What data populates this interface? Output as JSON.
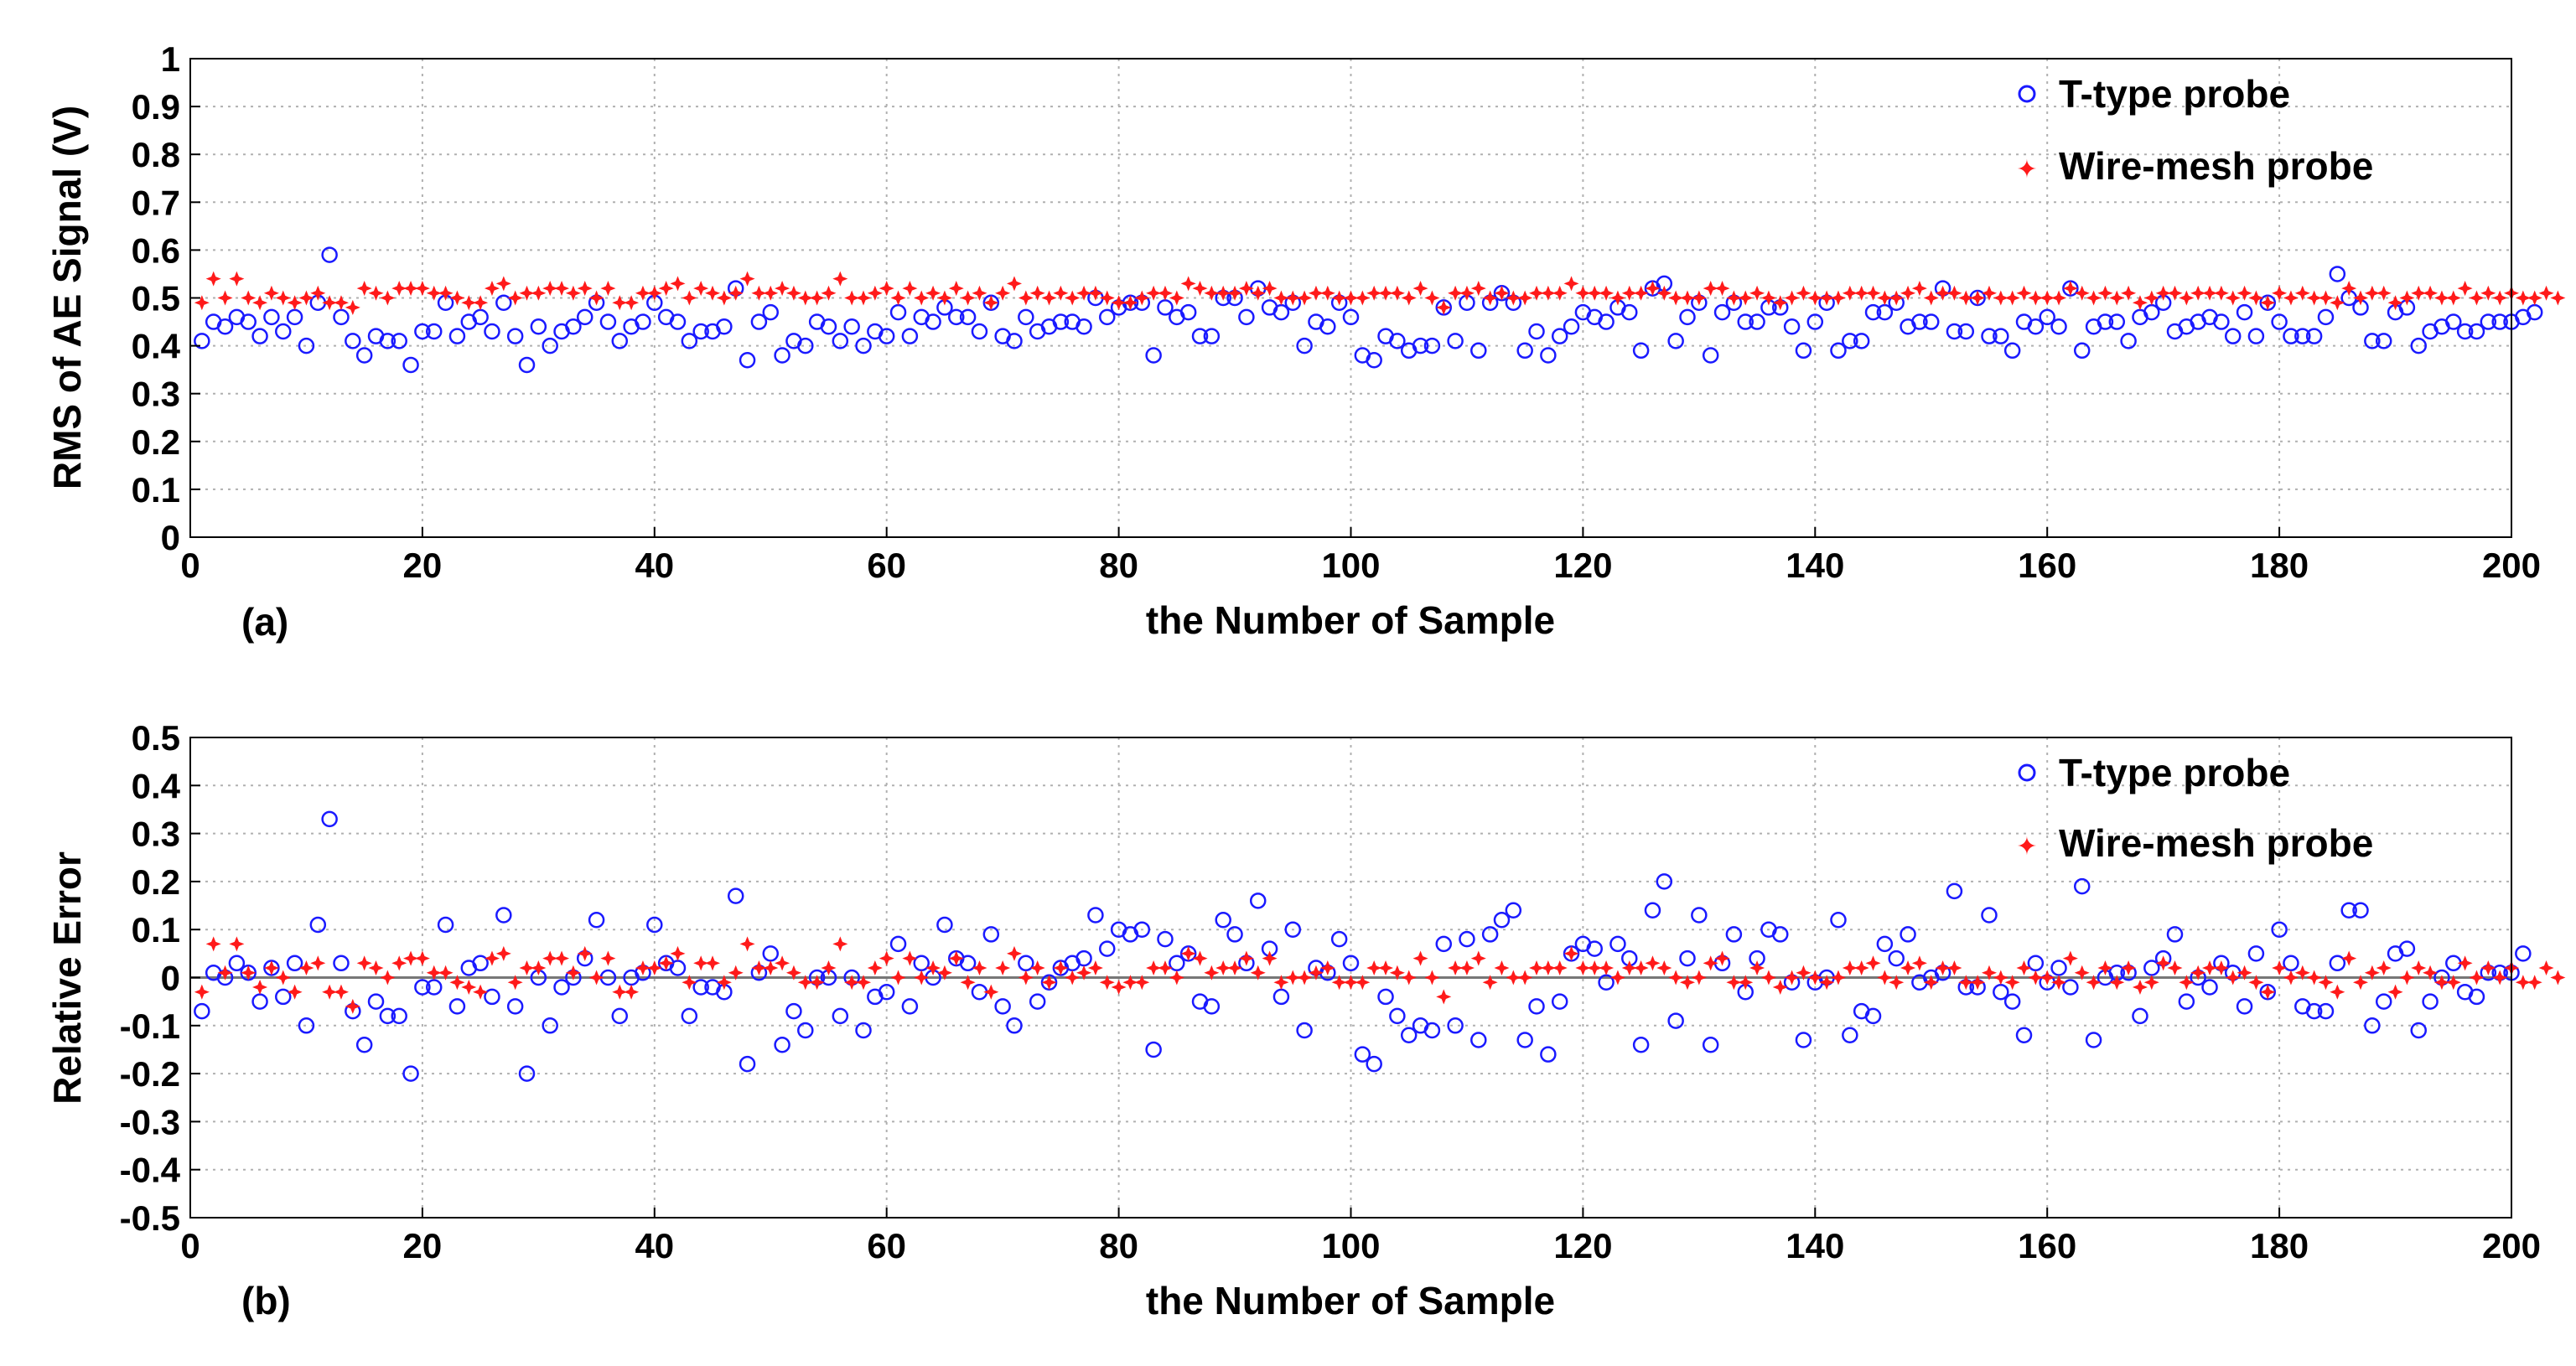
{
  "colors": {
    "t_type": "#1a1aff",
    "wire_mesh": "#ff1a1a",
    "grid": "#b0b0b0",
    "axis": "#000000",
    "zero_line": "#777777"
  },
  "chart_data": [
    {
      "type": "scatter",
      "panel_label": "(a)",
      "title": "",
      "xlabel": "the Number of Sample",
      "ylabel": "RMS of AE Signal (V)",
      "xlim": [
        0,
        200
      ],
      "ylim": [
        0,
        1
      ],
      "xticks": [
        "0",
        "20",
        "40",
        "60",
        "80",
        "100",
        "120",
        "140",
        "160",
        "180",
        "200"
      ],
      "yticks": [
        "0",
        "0.1",
        "0.2",
        "0.3",
        "0.4",
        "0.5",
        "0.6",
        "0.7",
        "0.8",
        "0.9",
        "1"
      ],
      "grid": true,
      "legend_position": "top-right",
      "series": [
        {
          "name": "T-type probe",
          "marker": "circle",
          "color": "#1a1aff",
          "values": [
            0.41,
            0.45,
            0.44,
            0.46,
            0.45,
            0.42,
            0.46,
            0.43,
            0.46,
            0.4,
            0.49,
            0.59,
            0.46,
            0.41,
            0.38,
            0.42,
            0.41,
            0.41,
            0.36,
            0.43,
            0.43,
            0.49,
            0.42,
            0.45,
            0.46,
            0.43,
            0.49,
            0.42,
            0.36,
            0.44,
            0.4,
            0.43,
            0.44,
            0.46,
            0.49,
            0.45,
            0.41,
            0.44,
            0.45,
            0.49,
            0.46,
            0.45,
            0.41,
            0.43,
            0.43,
            0.44,
            0.52,
            0.37,
            0.45,
            0.47,
            0.38,
            0.41,
            0.4,
            0.45,
            0.44,
            0.41,
            0.44,
            0.4,
            0.43,
            0.42,
            0.47,
            0.42,
            0.46,
            0.45,
            0.48,
            0.46,
            0.46,
            0.43,
            0.49,
            0.42,
            0.41,
            0.46,
            0.43,
            0.44,
            0.45,
            0.45,
            0.44,
            0.5,
            0.46,
            0.48,
            0.49,
            0.49,
            0.38,
            0.48,
            0.46,
            0.47,
            0.42,
            0.42,
            0.5,
            0.5,
            0.46,
            0.52,
            0.48,
            0.47,
            0.49,
            0.4,
            0.45,
            0.44,
            0.49,
            0.46,
            0.38,
            0.37,
            0.42,
            0.41,
            0.39,
            0.4,
            0.4,
            0.48,
            0.41,
            0.49,
            0.39,
            0.49,
            0.51,
            0.49,
            0.39,
            0.43,
            0.38,
            0.42,
            0.44,
            0.47,
            0.46,
            0.45,
            0.48,
            0.47,
            0.39,
            0.52,
            0.53,
            0.41,
            0.46,
            0.49,
            0.38,
            0.47,
            0.49,
            0.45,
            0.45,
            0.48,
            0.48,
            0.44,
            0.39,
            0.45,
            0.49,
            0.39,
            0.41,
            0.41,
            0.47,
            0.47,
            0.49,
            0.44,
            0.45,
            0.45,
            0.52,
            0.43,
            0.43,
            0.5,
            0.42,
            0.42,
            0.39,
            0.45,
            0.44,
            0.46,
            0.44,
            0.52,
            0.39,
            0.44,
            0.45,
            0.45,
            0.41,
            0.46,
            0.47,
            0.49,
            0.43,
            0.44,
            0.45,
            0.46,
            0.45,
            0.42,
            0.47,
            0.42,
            0.49,
            0.45,
            0.42,
            0.42,
            0.42,
            0.46,
            0.55,
            0.5,
            0.48,
            0.41,
            0.41,
            0.47,
            0.48,
            0.4,
            0.43,
            0.44,
            0.45,
            0.43,
            0.43,
            0.45,
            0.45,
            0.45,
            0.46,
            0.47
          ]
        },
        {
          "name": "Wire-mesh probe",
          "marker": "star",
          "color": "#ff1a1a",
          "values": [
            0.49,
            0.54,
            0.5,
            0.54,
            0.5,
            0.49,
            0.51,
            0.5,
            0.49,
            0.5,
            0.51,
            0.49,
            0.49,
            0.48,
            0.52,
            0.51,
            0.5,
            0.52,
            0.52,
            0.52,
            0.51,
            0.51,
            0.5,
            0.49,
            0.49,
            0.52,
            0.53,
            0.5,
            0.51,
            0.51,
            0.52,
            0.52,
            0.51,
            0.52,
            0.5,
            0.52,
            0.49,
            0.49,
            0.51,
            0.51,
            0.52,
            0.53,
            0.5,
            0.52,
            0.51,
            0.5,
            0.51,
            0.54,
            0.51,
            0.51,
            0.52,
            0.51,
            0.5,
            0.5,
            0.51,
            0.54,
            0.5,
            0.5,
            0.51,
            0.52,
            0.5,
            0.52,
            0.5,
            0.51,
            0.5,
            0.52,
            0.5,
            0.51,
            0.49,
            0.51,
            0.53,
            0.5,
            0.51,
            0.5,
            0.51,
            0.5,
            0.51,
            0.51,
            0.5,
            0.49,
            0.49,
            0.5,
            0.51,
            0.51,
            0.5,
            0.53,
            0.52,
            0.51,
            0.51,
            0.51,
            0.52,
            0.51,
            0.52,
            0.5,
            0.5,
            0.5,
            0.51,
            0.51,
            0.5,
            0.5,
            0.5,
            0.51,
            0.51,
            0.51,
            0.5,
            0.52,
            0.5,
            0.48,
            0.51,
            0.51,
            0.52,
            0.5,
            0.51,
            0.5,
            0.5,
            0.51,
            0.51,
            0.51,
            0.53,
            0.51,
            0.51,
            0.51,
            0.5,
            0.51,
            0.51,
            0.52,
            0.51,
            0.5,
            0.5,
            0.5,
            0.52,
            0.52,
            0.5,
            0.5,
            0.51,
            0.5,
            0.49,
            0.5,
            0.51,
            0.5,
            0.5,
            0.5,
            0.51,
            0.51,
            0.51,
            0.5,
            0.5,
            0.51,
            0.52,
            0.5,
            0.51,
            0.51,
            0.5,
            0.5,
            0.51,
            0.5,
            0.5,
            0.51,
            0.5,
            0.5,
            0.5,
            0.52,
            0.51,
            0.5,
            0.51,
            0.5,
            0.51,
            0.49,
            0.5,
            0.51,
            0.51,
            0.5,
            0.51,
            0.51,
            0.51,
            0.5,
            0.51,
            0.5,
            0.49,
            0.51,
            0.5,
            0.51,
            0.5,
            0.5,
            0.49,
            0.52,
            0.5,
            0.51,
            0.51,
            0.49,
            0.5,
            0.51,
            0.51,
            0.5,
            0.5,
            0.52,
            0.5,
            0.51,
            0.5,
            0.51,
            0.5,
            0.5,
            0.51,
            0.5
          ]
        }
      ]
    },
    {
      "type": "scatter",
      "panel_label": "(b)",
      "title": "",
      "xlabel": "the Number of Sample",
      "ylabel": "Relative Error",
      "xlim": [
        0,
        200
      ],
      "ylim": [
        -0.5,
        0.5
      ],
      "xticks": [
        "0",
        "20",
        "40",
        "60",
        "80",
        "100",
        "120",
        "140",
        "160",
        "180",
        "200"
      ],
      "yticks": [
        "-0.5",
        "-0.4",
        "-0.3",
        "-0.2",
        "-0.1",
        "0",
        "0.1",
        "0.2",
        "0.3",
        "0.4",
        "0.5"
      ],
      "grid": true,
      "reference_line": 0,
      "legend_position": "top-right",
      "series": [
        {
          "name": "T-type probe",
          "marker": "circle",
          "color": "#1a1aff",
          "values": [
            -0.07,
            0.01,
            0.0,
            0.03,
            0.01,
            -0.05,
            0.02,
            -0.04,
            0.03,
            -0.1,
            0.11,
            0.33,
            0.03,
            -0.07,
            -0.14,
            -0.05,
            -0.08,
            -0.08,
            -0.2,
            -0.02,
            -0.02,
            0.11,
            -0.06,
            0.02,
            0.03,
            -0.04,
            0.13,
            -0.06,
            -0.2,
            0.0,
            -0.1,
            -0.02,
            0.0,
            0.04,
            0.12,
            0.0,
            -0.08,
            0.0,
            0.01,
            0.11,
            0.03,
            0.02,
            -0.08,
            -0.02,
            -0.02,
            -0.03,
            0.17,
            -0.18,
            0.01,
            0.05,
            -0.14,
            -0.07,
            -0.11,
            0.0,
            0.0,
            -0.08,
            0.0,
            -0.11,
            -0.04,
            -0.03,
            0.07,
            -0.06,
            0.03,
            0.0,
            0.11,
            0.04,
            0.03,
            -0.03,
            0.09,
            -0.06,
            -0.1,
            0.03,
            -0.05,
            -0.01,
            0.02,
            0.03,
            0.04,
            0.13,
            0.06,
            0.1,
            0.09,
            0.1,
            -0.15,
            0.08,
            0.03,
            0.05,
            -0.05,
            -0.06,
            0.12,
            0.09,
            0.03,
            0.16,
            0.06,
            -0.04,
            0.1,
            -0.11,
            0.02,
            0.01,
            0.08,
            0.03,
            -0.16,
            -0.18,
            -0.04,
            -0.08,
            -0.12,
            -0.1,
            -0.11,
            0.07,
            -0.1,
            0.08,
            -0.13,
            0.09,
            0.12,
            0.14,
            -0.13,
            -0.06,
            -0.16,
            -0.05,
            0.05,
            0.07,
            0.06,
            -0.01,
            0.07,
            0.04,
            -0.14,
            0.14,
            0.2,
            -0.09,
            0.04,
            0.13,
            -0.14,
            0.03,
            0.09,
            -0.03,
            0.04,
            0.1,
            0.09,
            -0.01,
            -0.13,
            -0.01,
            0.0,
            0.12,
            -0.12,
            -0.07,
            -0.08,
            0.07,
            0.04,
            0.09,
            -0.01,
            0.0,
            0.01,
            0.18,
            -0.02,
            -0.02,
            0.13,
            -0.03,
            -0.05,
            -0.12,
            0.03,
            -0.01,
            0.02,
            -0.02,
            0.19,
            -0.13,
            0.0,
            0.01,
            0.01,
            -0.08,
            0.02,
            0.04,
            0.09,
            -0.05,
            0.0,
            -0.02,
            0.03,
            0.01,
            -0.06,
            0.05,
            -0.03,
            0.1,
            0.03,
            -0.06,
            -0.07,
            -0.07,
            0.03,
            0.14,
            0.14,
            -0.1,
            -0.05,
            0.05,
            0.06,
            -0.11,
            -0.05,
            0.0,
            0.03,
            -0.03,
            -0.04,
            0.01,
            0.01,
            0.01,
            0.05
          ]
        },
        {
          "name": "Wire-mesh probe",
          "marker": "star",
          "color": "#ff1a1a",
          "values": [
            -0.03,
            0.07,
            0.01,
            0.07,
            0.01,
            -0.02,
            0.02,
            0.0,
            -0.03,
            0.02,
            0.03,
            -0.03,
            -0.03,
            -0.06,
            0.03,
            0.02,
            0.0,
            0.03,
            0.04,
            0.04,
            0.01,
            0.01,
            -0.01,
            -0.02,
            -0.03,
            0.04,
            0.05,
            -0.01,
            0.02,
            0.02,
            0.04,
            0.04,
            0.01,
            0.05,
            0.0,
            0.04,
            -0.03,
            -0.03,
            0.02,
            0.02,
            0.03,
            0.05,
            -0.01,
            0.03,
            0.03,
            -0.01,
            0.01,
            0.07,
            0.02,
            0.02,
            0.03,
            0.01,
            -0.01,
            -0.01,
            0.02,
            0.07,
            -0.01,
            -0.01,
            0.02,
            0.04,
            0.0,
            0.04,
            0.0,
            0.02,
            0.01,
            0.04,
            -0.01,
            0.02,
            -0.03,
            0.02,
            0.05,
            0.0,
            0.02,
            -0.01,
            0.02,
            0.0,
            0.01,
            0.02,
            -0.01,
            -0.02,
            -0.01,
            -0.01,
            0.02,
            0.02,
            0.0,
            0.05,
            0.04,
            0.01,
            0.02,
            0.02,
            0.04,
            0.01,
            0.04,
            -0.01,
            0.0,
            0.0,
            0.01,
            0.02,
            -0.01,
            -0.01,
            -0.01,
            0.02,
            0.02,
            0.01,
            0.0,
            0.04,
            0.0,
            -0.04,
            0.02,
            0.02,
            0.04,
            -0.01,
            0.02,
            0.0,
            0.0,
            0.02,
            0.02,
            0.02,
            0.05,
            0.02,
            0.02,
            0.02,
            0.0,
            0.02,
            0.02,
            0.03,
            0.02,
            0.0,
            -0.01,
            0.0,
            0.03,
            0.04,
            -0.01,
            -0.01,
            0.02,
            0.0,
            -0.02,
            0.0,
            0.01,
            0.0,
            -0.01,
            0.0,
            0.02,
            0.02,
            0.03,
            0.0,
            -0.01,
            0.02,
            0.03,
            -0.01,
            0.02,
            0.02,
            -0.01,
            -0.01,
            0.01,
            0.0,
            -0.01,
            0.02,
            0.0,
            0.0,
            -0.01,
            0.04,
            0.01,
            -0.01,
            0.02,
            -0.01,
            0.02,
            -0.02,
            -0.01,
            0.03,
            0.02,
            -0.01,
            0.01,
            0.02,
            0.02,
            0.0,
            0.01,
            -0.01,
            -0.03,
            0.02,
            0.0,
            0.01,
            0.0,
            -0.01,
            -0.03,
            0.04,
            -0.01,
            0.01,
            0.02,
            -0.03,
            0.0,
            0.02,
            0.01,
            -0.01,
            -0.01,
            0.03,
            0.0,
            0.02,
            0.0,
            0.02,
            -0.01,
            -0.01,
            0.02,
            0.0
          ]
        }
      ]
    }
  ]
}
